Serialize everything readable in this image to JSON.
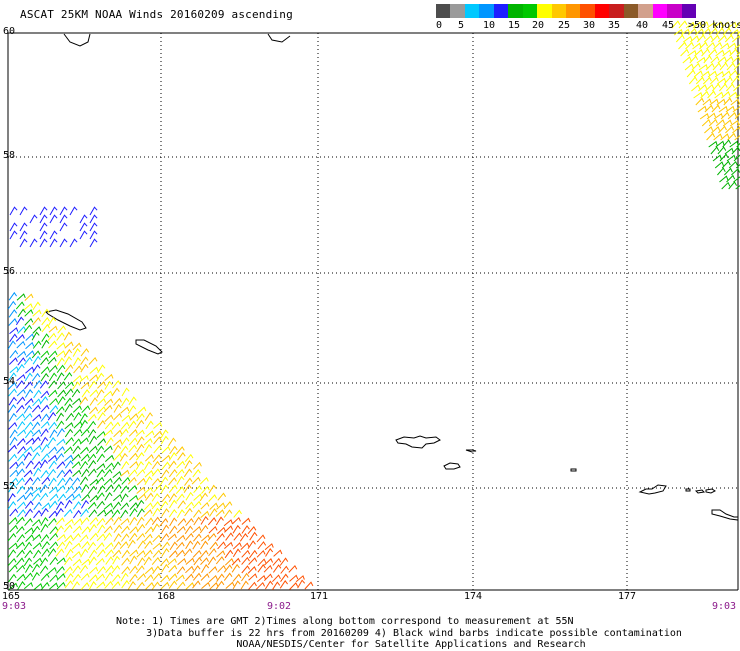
{
  "title": "ASCAT 25KM NOAA Winds 20160209 ascending",
  "colorbar": {
    "colors": [
      "#4d4d4d",
      "#9a9a9a",
      "#00c8ff",
      "#0096ff",
      "#1e1eff",
      "#00b400",
      "#00c800",
      "#ffff00",
      "#ffc800",
      "#ff9600",
      "#ff5000",
      "#ff0000",
      "#c81e1e",
      "#8b5a28",
      "#d2a08c",
      "#ff00ff",
      "#c800c8",
      "#6400b4"
    ],
    "labels": [
      "0",
      "5",
      "10",
      "15",
      "20",
      "25",
      "30",
      "35",
      "40",
      "45",
      ">50 knots"
    ]
  },
  "axes": {
    "lon_ticks": [
      "165",
      "168",
      "171",
      "174",
      "177"
    ],
    "lat_ticks": [
      "60",
      "58",
      "56",
      "54",
      "52",
      "50"
    ],
    "times": [
      "9:03",
      "9:02",
      "9:03"
    ]
  },
  "notes": [
    "Note: 1) Times are GMT 2)Times along bottom correspond to measurement at 55N",
    "     3)Data buffer is 22 hrs from 20160209 4) Black wind barbs indicate possible contamination",
    "                    NOAA/NESDIS/Center for Satellite Applications and Research"
  ]
}
